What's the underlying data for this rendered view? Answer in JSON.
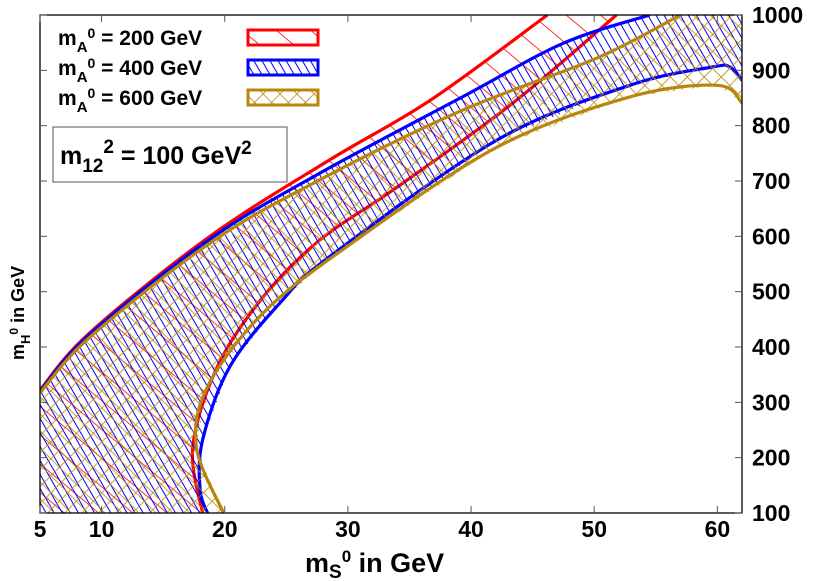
{
  "chart_data": {
    "type": "area",
    "title": "",
    "xlabel": {
      "main": "m",
      "sub": "S",
      "sup": "0",
      "rest": " in GeV"
    },
    "ylabel": {
      "main": "m",
      "sub": "H",
      "sup": "0",
      "rest": " in GeV"
    },
    "xlim": [
      5,
      62
    ],
    "ylim": [
      100,
      1000
    ],
    "x_ticks": [
      5,
      10,
      20,
      30,
      40,
      50,
      60
    ],
    "x_tick_labels": [
      "5",
      "10",
      "20",
      "30",
      "40",
      "50",
      "60"
    ],
    "y_ticks": [
      100,
      200,
      300,
      400,
      500,
      600,
      700,
      800,
      900,
      1000
    ],
    "y_tick_labels": [
      "100",
      "200",
      "300",
      "400",
      "500",
      "600",
      "700",
      "800",
      "900",
      "1000"
    ],
    "y_axis_side": "right",
    "grid": false,
    "legend_position": "top-left",
    "annotation": {
      "main": "m",
      "sub": "12",
      "sup": "2",
      "rest": " = 100 GeV",
      "rest_sup": "2"
    },
    "series": [
      {
        "name": {
          "main": "m",
          "sub": "A",
          "sup": "0",
          "rest": " = 200 GeV"
        },
        "color": "#ff0000",
        "fill": "sparse-diagonal-hatch",
        "upper": [
          [
            5,
            322
          ],
          [
            9,
            425
          ],
          [
            18.8,
            600
          ],
          [
            28.5,
            738
          ],
          [
            36.7,
            846
          ],
          [
            46.2,
            1000
          ]
        ],
        "lower": [
          [
            18.2,
            100
          ],
          [
            17.4,
            219
          ],
          [
            19.4,
            364
          ],
          [
            23.1,
            490
          ],
          [
            27.7,
            593
          ],
          [
            34,
            689
          ],
          [
            43.4,
            841
          ],
          [
            51.8,
            1000
          ]
        ]
      },
      {
        "name": {
          "main": "m",
          "sub": "A",
          "sup": "0",
          "rest": " = 400 GeV"
        },
        "color": "#0000ff",
        "fill": "dense-diagonal-hatch",
        "upper": [
          [
            5,
            320
          ],
          [
            9,
            422
          ],
          [
            18.8,
            595
          ],
          [
            27.7,
            714
          ],
          [
            39.3,
            852
          ],
          [
            47.5,
            949
          ],
          [
            54.5,
            1000
          ]
        ],
        "lower": [
          [
            18.6,
            100
          ],
          [
            18,
            142
          ],
          [
            18.2,
            232
          ],
          [
            20.4,
            364
          ],
          [
            24.5,
            480
          ],
          [
            28.5,
            563
          ],
          [
            42.1,
            774
          ],
          [
            52.9,
            873
          ],
          [
            59.6,
            906
          ],
          [
            61,
            906
          ],
          [
            62,
            882
          ]
        ]
      },
      {
        "name": {
          "main": "m",
          "sub": "A",
          "sup": "0",
          "rest": " = 600 GeV"
        },
        "color": "#b8860b",
        "fill": "cross-hatch",
        "upper": [
          [
            5,
            317
          ],
          [
            9.06,
            418
          ],
          [
            18.8,
            588
          ],
          [
            27.7,
            702
          ],
          [
            39.3,
            828
          ],
          [
            50.2,
            922
          ],
          [
            57,
            1000
          ]
        ],
        "lower": [
          [
            19.9,
            100
          ],
          [
            17.7,
            219
          ],
          [
            18.6,
            328
          ],
          [
            23.1,
            461
          ],
          [
            29.9,
            581
          ],
          [
            42.1,
            761
          ],
          [
            52.9,
            852
          ],
          [
            60,
            873
          ],
          [
            62,
            841
          ]
        ]
      }
    ]
  }
}
